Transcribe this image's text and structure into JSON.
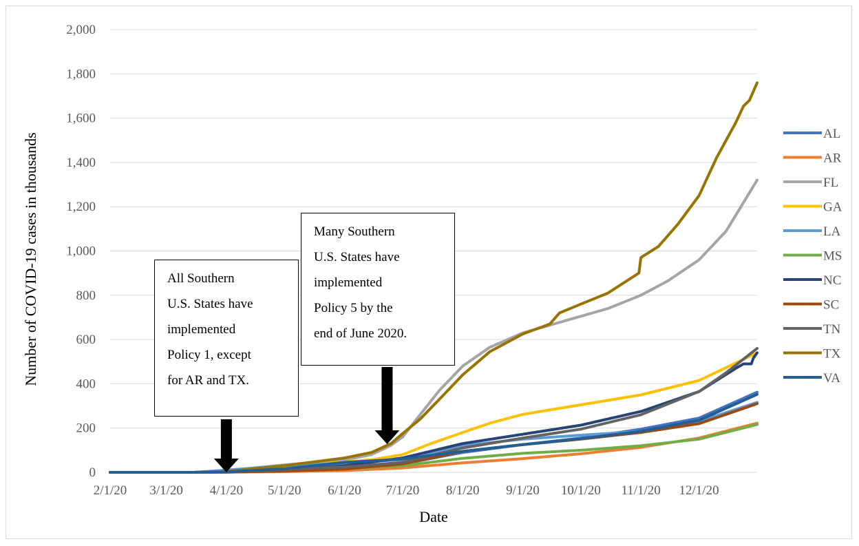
{
  "chart_data": {
    "type": "line",
    "title": "",
    "xlabel": "Date",
    "ylabel": "Number of COVID-19 cases in thousands",
    "ylim": [
      0,
      2000
    ],
    "yticks": [
      0,
      200,
      400,
      600,
      800,
      1000,
      1200,
      1400,
      1600,
      1800,
      2000
    ],
    "ytick_labels": [
      "0",
      "200",
      "400",
      "600",
      "800",
      "1,000",
      "1,200",
      "1,400",
      "1,600",
      "1,800",
      "2,000"
    ],
    "xlim": [
      "2020-02-01",
      "2020-12-31"
    ],
    "xticks": [
      "2020-02-01",
      "2020-03-01",
      "2020-04-01",
      "2020-05-01",
      "2020-06-01",
      "2020-07-01",
      "2020-08-01",
      "2020-09-01",
      "2020-10-01",
      "2020-11-01",
      "2020-12-01"
    ],
    "xtick_labels": [
      "2/1/20",
      "3/1/20",
      "4/1/20",
      "5/1/20",
      "6/1/20",
      "7/1/20",
      "8/1/20",
      "9/1/20",
      "10/1/20",
      "11/1/20",
      "12/1/20"
    ],
    "grid": "horizontal",
    "legend": "right",
    "series": [
      {
        "name": "AL",
        "color": "#4472C4",
        "points": [
          [
            "2020-02-01",
            0
          ],
          [
            "2020-03-15",
            0
          ],
          [
            "2020-04-01",
            1
          ],
          [
            "2020-05-01",
            7
          ],
          [
            "2020-06-01",
            18
          ],
          [
            "2020-07-01",
            38
          ],
          [
            "2020-08-01",
            90
          ],
          [
            "2020-09-01",
            125
          ],
          [
            "2020-10-01",
            155
          ],
          [
            "2020-11-01",
            195
          ],
          [
            "2020-12-01",
            245
          ],
          [
            "2020-12-31",
            362
          ]
        ]
      },
      {
        "name": "AR",
        "color": "#ED7D31",
        "points": [
          [
            "2020-02-01",
            0
          ],
          [
            "2020-03-15",
            0
          ],
          [
            "2020-04-01",
            1
          ],
          [
            "2020-05-01",
            3
          ],
          [
            "2020-06-01",
            8
          ],
          [
            "2020-07-01",
            20
          ],
          [
            "2020-08-01",
            43
          ],
          [
            "2020-09-01",
            62
          ],
          [
            "2020-10-01",
            84
          ],
          [
            "2020-11-01",
            113
          ],
          [
            "2020-12-01",
            155
          ],
          [
            "2020-12-31",
            222
          ]
        ]
      },
      {
        "name": "FL",
        "color": "#A5A5A5",
        "points": [
          [
            "2020-02-01",
            0
          ],
          [
            "2020-03-15",
            0
          ],
          [
            "2020-04-01",
            7
          ],
          [
            "2020-05-01",
            34
          ],
          [
            "2020-06-01",
            56
          ],
          [
            "2020-06-15",
            80
          ],
          [
            "2020-06-25",
            122
          ],
          [
            "2020-07-01",
            160
          ],
          [
            "2020-07-10",
            260
          ],
          [
            "2020-07-20",
            370
          ],
          [
            "2020-08-01",
            480
          ],
          [
            "2020-08-15",
            565
          ],
          [
            "2020-09-01",
            630
          ],
          [
            "2020-09-15",
            665
          ],
          [
            "2020-10-01",
            705
          ],
          [
            "2020-10-15",
            740
          ],
          [
            "2020-11-01",
            800
          ],
          [
            "2020-11-15",
            865
          ],
          [
            "2020-12-01",
            960
          ],
          [
            "2020-12-15",
            1090
          ],
          [
            "2020-12-31",
            1320
          ]
        ]
      },
      {
        "name": "GA",
        "color": "#FFC000",
        "points": [
          [
            "2020-02-01",
            0
          ],
          [
            "2020-03-15",
            0
          ],
          [
            "2020-04-01",
            5
          ],
          [
            "2020-05-01",
            28
          ],
          [
            "2020-06-01",
            46
          ],
          [
            "2020-06-15",
            57
          ],
          [
            "2020-07-01",
            80
          ],
          [
            "2020-07-15",
            128
          ],
          [
            "2020-08-01",
            180
          ],
          [
            "2020-08-15",
            222
          ],
          [
            "2020-09-01",
            262
          ],
          [
            "2020-10-01",
            305
          ],
          [
            "2020-11-01",
            350
          ],
          [
            "2020-12-01",
            415
          ],
          [
            "2020-12-31",
            540
          ]
        ]
      },
      {
        "name": "LA",
        "color": "#5B9BD5",
        "points": [
          [
            "2020-02-01",
            0
          ],
          [
            "2020-03-15",
            0
          ],
          [
            "2020-04-01",
            10
          ],
          [
            "2020-05-01",
            30
          ],
          [
            "2020-06-01",
            41
          ],
          [
            "2020-07-01",
            58
          ],
          [
            "2020-07-15",
            85
          ],
          [
            "2020-08-01",
            120
          ],
          [
            "2020-09-01",
            150
          ],
          [
            "2020-10-01",
            168
          ],
          [
            "2020-11-01",
            185
          ],
          [
            "2020-12-01",
            230
          ],
          [
            "2020-12-31",
            316
          ]
        ]
      },
      {
        "name": "MS",
        "color": "#70AD47",
        "points": [
          [
            "2020-02-01",
            0
          ],
          [
            "2020-03-15",
            0
          ],
          [
            "2020-04-01",
            1
          ],
          [
            "2020-05-01",
            7
          ],
          [
            "2020-06-01",
            16
          ],
          [
            "2020-07-01",
            30
          ],
          [
            "2020-08-01",
            63
          ],
          [
            "2020-09-01",
            86
          ],
          [
            "2020-10-01",
            100
          ],
          [
            "2020-11-01",
            120
          ],
          [
            "2020-12-01",
            150
          ],
          [
            "2020-12-31",
            216
          ]
        ]
      },
      {
        "name": "NC",
        "color": "#264478",
        "points": [
          [
            "2020-02-01",
            0
          ],
          [
            "2020-03-15",
            0
          ],
          [
            "2020-04-01",
            2
          ],
          [
            "2020-05-01",
            10
          ],
          [
            "2020-06-01",
            30
          ],
          [
            "2020-07-01",
            65
          ],
          [
            "2020-08-01",
            130
          ],
          [
            "2020-09-01",
            172
          ],
          [
            "2020-10-01",
            213
          ],
          [
            "2020-11-01",
            275
          ],
          [
            "2020-12-01",
            365
          ],
          [
            "2020-12-20",
            470
          ],
          [
            "2020-12-24",
            490
          ],
          [
            "2020-12-28",
            490
          ],
          [
            "2020-12-29",
            515
          ],
          [
            "2020-12-31",
            540
          ]
        ]
      },
      {
        "name": "SC",
        "color": "#9E480E",
        "points": [
          [
            "2020-02-01",
            0
          ],
          [
            "2020-03-15",
            0
          ],
          [
            "2020-04-01",
            1
          ],
          [
            "2020-05-01",
            6
          ],
          [
            "2020-06-01",
            15
          ],
          [
            "2020-07-01",
            38
          ],
          [
            "2020-08-01",
            95
          ],
          [
            "2020-09-01",
            125
          ],
          [
            "2020-10-01",
            150
          ],
          [
            "2020-11-01",
            180
          ],
          [
            "2020-12-01",
            220
          ],
          [
            "2020-12-31",
            310
          ]
        ]
      },
      {
        "name": "TN",
        "color": "#636363",
        "points": [
          [
            "2020-02-01",
            0
          ],
          [
            "2020-03-15",
            0
          ],
          [
            "2020-04-01",
            2
          ],
          [
            "2020-05-01",
            14
          ],
          [
            "2020-06-01",
            24
          ],
          [
            "2020-07-01",
            45
          ],
          [
            "2020-08-01",
            110
          ],
          [
            "2020-09-01",
            155
          ],
          [
            "2020-10-01",
            195
          ],
          [
            "2020-11-01",
            260
          ],
          [
            "2020-12-01",
            365
          ],
          [
            "2020-12-15",
            450
          ],
          [
            "2020-12-31",
            560
          ]
        ]
      },
      {
        "name": "TX",
        "color": "#997300",
        "points": [
          [
            "2020-02-01",
            0
          ],
          [
            "2020-03-15",
            0
          ],
          [
            "2020-04-01",
            4
          ],
          [
            "2020-05-01",
            30
          ],
          [
            "2020-06-01",
            65
          ],
          [
            "2020-06-15",
            90
          ],
          [
            "2020-06-25",
            130
          ],
          [
            "2020-07-01",
            175
          ],
          [
            "2020-07-10",
            240
          ],
          [
            "2020-07-20",
            330
          ],
          [
            "2020-08-01",
            440
          ],
          [
            "2020-08-15",
            545
          ],
          [
            "2020-09-01",
            625
          ],
          [
            "2020-09-15",
            670
          ],
          [
            "2020-09-20",
            720
          ],
          [
            "2020-10-01",
            760
          ],
          [
            "2020-10-15",
            810
          ],
          [
            "2020-10-31",
            900
          ],
          [
            "2020-11-01",
            970
          ],
          [
            "2020-11-10",
            1020
          ],
          [
            "2020-11-20",
            1120
          ],
          [
            "2020-12-01",
            1250
          ],
          [
            "2020-12-10",
            1420
          ],
          [
            "2020-12-20",
            1580
          ],
          [
            "2020-12-24",
            1655
          ],
          [
            "2020-12-27",
            1680
          ],
          [
            "2020-12-31",
            1760
          ]
        ]
      },
      {
        "name": "VA",
        "color": "#255E91",
        "points": [
          [
            "2020-02-01",
            0
          ],
          [
            "2020-03-15",
            0
          ],
          [
            "2020-04-01",
            2
          ],
          [
            "2020-05-01",
            16
          ],
          [
            "2020-06-01",
            45
          ],
          [
            "2020-07-01",
            60
          ],
          [
            "2020-08-01",
            95
          ],
          [
            "2020-09-01",
            125
          ],
          [
            "2020-10-01",
            152
          ],
          [
            "2020-11-01",
            185
          ],
          [
            "2020-12-01",
            235
          ],
          [
            "2020-12-31",
            352
          ]
        ]
      }
    ],
    "annotations": [
      {
        "id": "policy1",
        "date": "2020-04-01",
        "lines": [
          "All Southern",
          "U.S. States have",
          "implemented",
          "Policy 1, except",
          "for AR and TX."
        ]
      },
      {
        "id": "policy5",
        "date": "2020-06-23",
        "lines": [
          "Many Southern",
          "U.S. States have",
          "implemented",
          "Policy 5 by the",
          "end of June 2020."
        ]
      }
    ]
  }
}
